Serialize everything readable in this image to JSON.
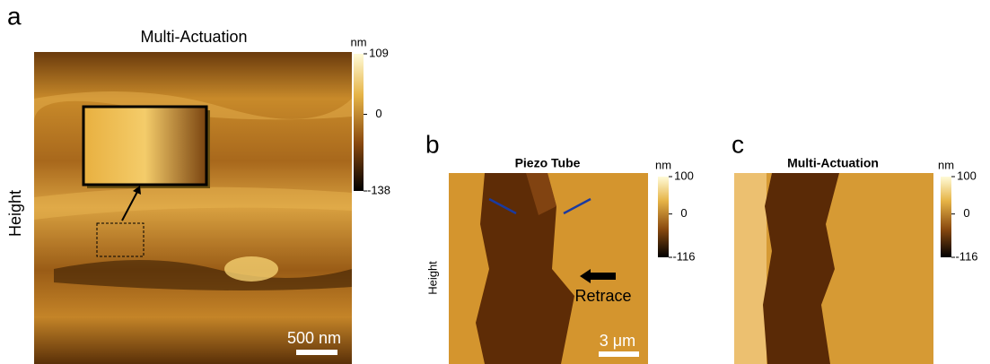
{
  "panels": [
    {
      "label": "a",
      "title": "Multi-Actuation",
      "y_label": "Height",
      "colorbar": {
        "unit": "nm",
        "ticks": [
          109,
          0,
          -138
        ]
      },
      "scale_bar": "500 nm"
    },
    {
      "label": "b",
      "title": "Piezo Tube",
      "y_label": "Height",
      "colorbar": {
        "unit": "nm",
        "ticks": [
          100,
          0,
          -116
        ]
      },
      "scale_bar": "3 μm",
      "annotation": "Retrace"
    },
    {
      "label": "c",
      "title": "Multi-Actuation",
      "colorbar": {
        "unit": "nm",
        "ticks": [
          100,
          0,
          -116
        ]
      }
    }
  ]
}
